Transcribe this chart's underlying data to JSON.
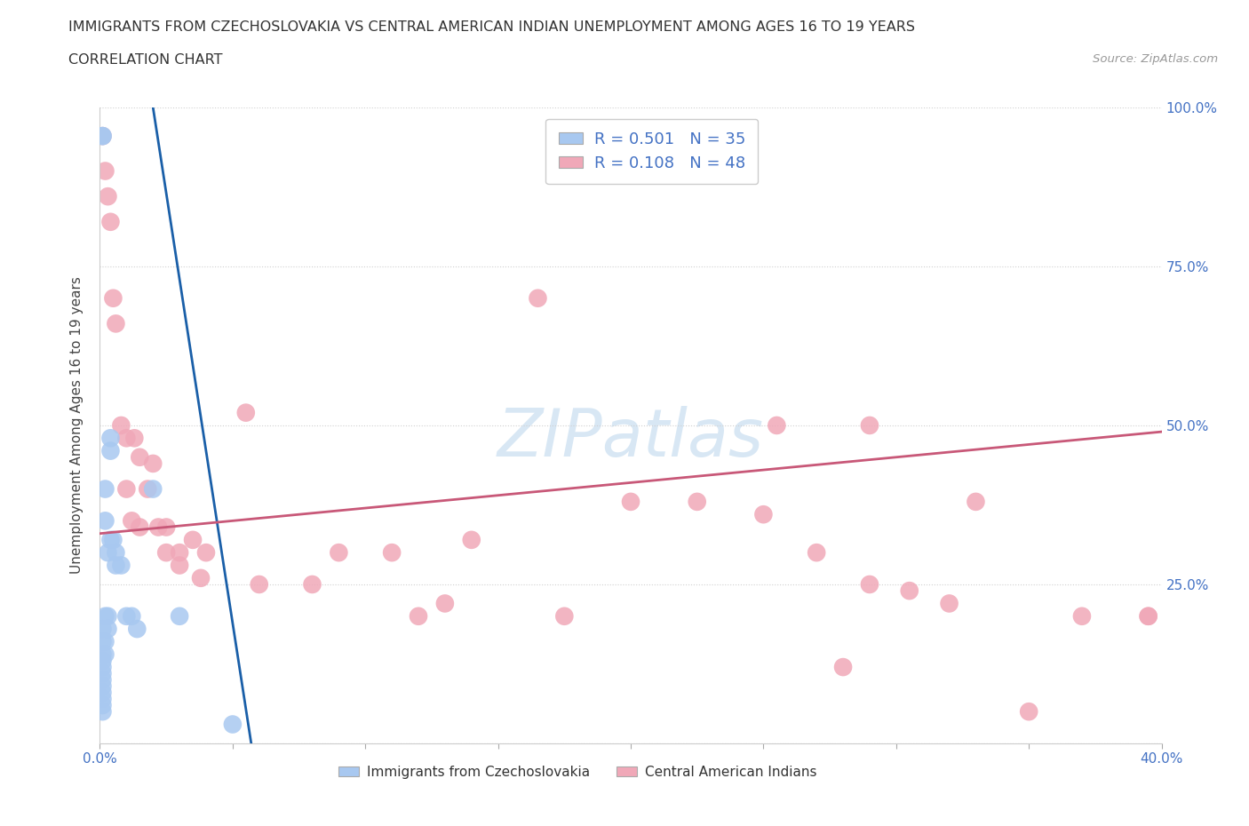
{
  "title": "IMMIGRANTS FROM CZECHOSLOVAKIA VS CENTRAL AMERICAN INDIAN UNEMPLOYMENT AMONG AGES 16 TO 19 YEARS",
  "subtitle": "CORRELATION CHART",
  "source": "Source: ZipAtlas.com",
  "ylabel": "Unemployment Among Ages 16 to 19 years",
  "watermark": "ZIPatlas",
  "blue_R": 0.501,
  "blue_N": 35,
  "pink_R": 0.108,
  "pink_N": 48,
  "blue_color": "#a8c8f0",
  "pink_color": "#f0a8b8",
  "blue_line_color": "#1a5fa8",
  "pink_line_color": "#c85878",
  "legend_label_blue": "Immigrants from Czechoslovakia",
  "legend_label_pink": "Central American Indians",
  "background_color": "#ffffff",
  "grid_color": "#d0d0d0",
  "blue_x": [
    0.001,
    0.001,
    0.001,
    0.001,
    0.001,
    0.001,
    0.001,
    0.001,
    0.001,
    0.001,
    0.001,
    0.001,
    0.001,
    0.001,
    0.002,
    0.002,
    0.002,
    0.002,
    0.002,
    0.003,
    0.003,
    0.003,
    0.004,
    0.004,
    0.004,
    0.005,
    0.006,
    0.006,
    0.008,
    0.01,
    0.012,
    0.014,
    0.02,
    0.03,
    0.05
  ],
  "blue_y": [
    0.955,
    0.955,
    0.18,
    0.16,
    0.14,
    0.13,
    0.12,
    0.11,
    0.1,
    0.09,
    0.08,
    0.07,
    0.06,
    0.05,
    0.4,
    0.35,
    0.2,
    0.16,
    0.14,
    0.3,
    0.2,
    0.18,
    0.48,
    0.46,
    0.32,
    0.32,
    0.3,
    0.28,
    0.28,
    0.2,
    0.2,
    0.18,
    0.4,
    0.2,
    0.03
  ],
  "pink_x": [
    0.001,
    0.002,
    0.003,
    0.004,
    0.005,
    0.006,
    0.008,
    0.01,
    0.01,
    0.012,
    0.013,
    0.015,
    0.015,
    0.018,
    0.02,
    0.022,
    0.025,
    0.025,
    0.03,
    0.03,
    0.035,
    0.038,
    0.04,
    0.055,
    0.08,
    0.09,
    0.11,
    0.12,
    0.13,
    0.14,
    0.165,
    0.2,
    0.225,
    0.25,
    0.255,
    0.27,
    0.29,
    0.305,
    0.32,
    0.35,
    0.37,
    0.395,
    0.33,
    0.29,
    0.175,
    0.28,
    0.395,
    0.06
  ],
  "pink_y": [
    0.955,
    0.9,
    0.86,
    0.82,
    0.7,
    0.66,
    0.5,
    0.48,
    0.4,
    0.35,
    0.48,
    0.45,
    0.34,
    0.4,
    0.44,
    0.34,
    0.34,
    0.3,
    0.28,
    0.3,
    0.32,
    0.26,
    0.3,
    0.52,
    0.25,
    0.3,
    0.3,
    0.2,
    0.22,
    0.32,
    0.7,
    0.38,
    0.38,
    0.36,
    0.5,
    0.3,
    0.5,
    0.24,
    0.22,
    0.05,
    0.2,
    0.2,
    0.38,
    0.25,
    0.2,
    0.12,
    0.2,
    0.25
  ]
}
